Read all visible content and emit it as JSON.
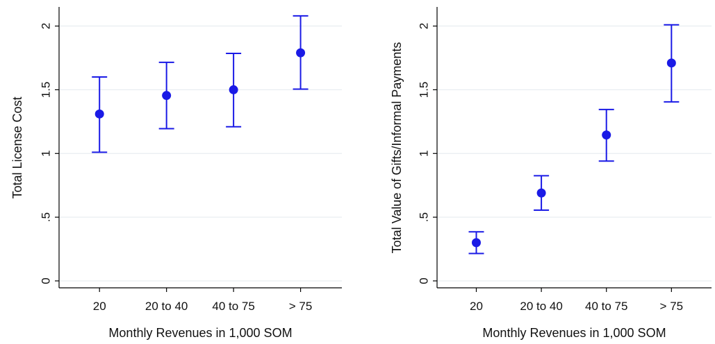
{
  "chart_data": [
    {
      "type": "scatter",
      "error_bars": true,
      "categories": [
        "20",
        "20 to 40",
        "40 to 75",
        "> 75"
      ],
      "values": [
        1.31,
        1.455,
        1.5,
        1.79
      ],
      "lower": [
        1.01,
        1.195,
        1.21,
        1.505
      ],
      "upper": [
        1.6,
        1.715,
        1.785,
        2.08
      ],
      "xlabel": "Monthly Revenues in 1,000 SOM",
      "ylabel": "Total License Cost",
      "ylim": [
        0,
        2.15
      ],
      "yticks": [
        "0",
        ".5",
        "1",
        "1.5",
        "2"
      ],
      "ytick_values": [
        0,
        0.5,
        1,
        1.5,
        2
      ],
      "grid": true,
      "color": "#1a1ae6"
    },
    {
      "type": "scatter",
      "error_bars": true,
      "categories": [
        "20",
        "20 to 40",
        "40 to 75",
        "> 75"
      ],
      "values": [
        0.3,
        0.69,
        1.145,
        1.71
      ],
      "lower": [
        0.215,
        0.555,
        0.94,
        1.405
      ],
      "upper": [
        0.385,
        0.825,
        1.345,
        2.01
      ],
      "xlabel": "Monthly Revenues in 1,000 SOM",
      "ylabel": "Total Value of Gifts/Informal Payments",
      "ylim": [
        0,
        2.15
      ],
      "yticks": [
        "0",
        ".5",
        "1",
        "1.5",
        "2"
      ],
      "ytick_values": [
        0,
        0.5,
        1,
        1.5,
        2
      ],
      "grid": true,
      "color": "#1a1ae6"
    }
  ]
}
